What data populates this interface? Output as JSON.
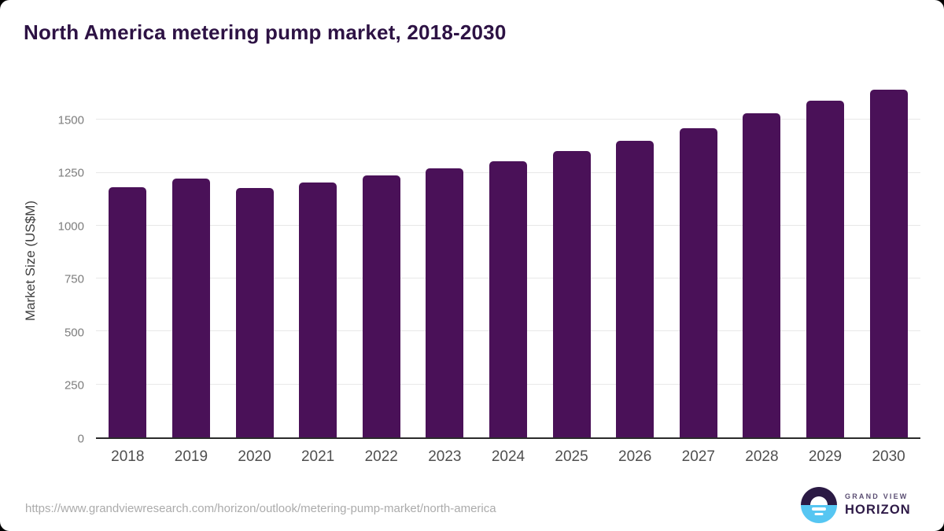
{
  "window": {
    "outer_background": "#000000",
    "card_background": "#ffffff"
  },
  "chart_data": {
    "type": "bar",
    "title": "North America metering pump market, 2018-2030",
    "ylabel": "Market Size (US$M)",
    "xlabel": "",
    "categories": [
      "2018",
      "2019",
      "2020",
      "2021",
      "2022",
      "2023",
      "2024",
      "2025",
      "2026",
      "2027",
      "2028",
      "2029",
      "2030"
    ],
    "values": [
      1181,
      1222,
      1178,
      1206,
      1239,
      1271,
      1305,
      1353,
      1402,
      1459,
      1530,
      1590,
      1644
    ],
    "unit": "US$M",
    "ylim": [
      0,
      1680
    ],
    "yticks": [
      0,
      250,
      500,
      750,
      1000,
      1250,
      1500
    ],
    "grid": "horizontal",
    "legend_position": "none",
    "bar_color": "#4a1158"
  },
  "footer": {
    "source_url": "https://www.grandviewresearch.com/horizon/outlook/metering-pump-market/north-america",
    "brand": {
      "name_top": "GRAND VIEW",
      "name_bottom": "HORIZON",
      "icon": "horizon-sun-icon",
      "icon_top_color": "#2b1a44",
      "icon_bottom_color": "#56c6f2",
      "icon_sun_color": "#ffffff"
    }
  },
  "colors": {
    "title": "#2d1244",
    "bar": "#4a1158",
    "gridline": "#e8e8e8",
    "axis_line": "#2b2b2b",
    "y_tick_label": "#7d7d7d",
    "x_tick_label": "#4f4f4f",
    "y_axis_title": "#3f3f3f",
    "source_url": "#ababab"
  }
}
